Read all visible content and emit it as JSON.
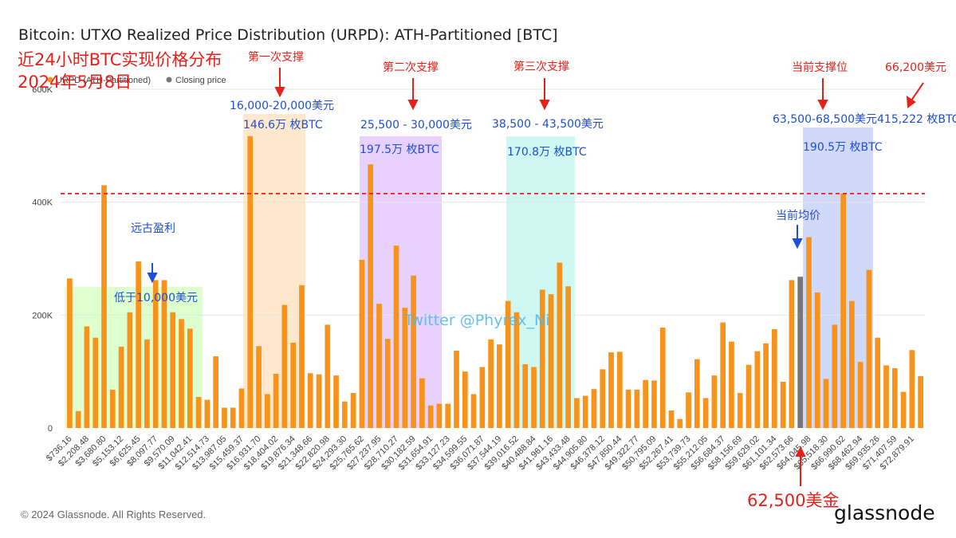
{
  "chart_data": {
    "type": "bar",
    "title": "Bitcoin: UTXO Realized Price Distribution (URPD): ATH-Partitioned [BTC]",
    "legend": [
      {
        "label": "URPD (ATH-Partitioned)",
        "color": "#f7931a"
      },
      {
        "label": "Closing price",
        "color": "#777777"
      }
    ],
    "ylim": [
      0,
      600000
    ],
    "yticks": [
      {
        "value": 0,
        "label": "0"
      },
      {
        "value": 200000,
        "label": "200K"
      },
      {
        "value": 400000,
        "label": "400K"
      },
      {
        "value": 600000,
        "label": "600K"
      }
    ],
    "xtick_labels": [
      "$736.16",
      "$2,208.48",
      "$3,680.80",
      "$5,153.12",
      "$6,625.45",
      "$8,097.77",
      "$9,570.09",
      "$11,042.41",
      "$12,514.73",
      "$13,987.05",
      "$15,459.37",
      "$16,931.70",
      "$18,404.02",
      "$19,876.34",
      "$21,348.66",
      "$22,820.98",
      "$24,293.30",
      "$25,765.62",
      "$27,237.95",
      "$28,710.27",
      "$30,182.59",
      "$31,654.91",
      "$33,127.23",
      "$34,599.55",
      "$36,071.87",
      "$37,544.19",
      "$39,016.52",
      "$40,488.84",
      "$41,961.16",
      "$43,433.48",
      "$44,905.80",
      "$46,378.12",
      "$47,850.44",
      "$49,322.77",
      "$50,795.09",
      "$52,267.41",
      "$53,739.73",
      "$55,212.05",
      "$56,684.37",
      "$58,156.69",
      "$59,629.02",
      "$61,101.34",
      "$62,573.66",
      "$64,045.98",
      "$65,518.30",
      "$66,990.62",
      "$68,462.94",
      "$69,935.26",
      "$71,407.59",
      "$72,879.91"
    ],
    "bar_width_usd": 736.16,
    "values": [
      265000,
      30000,
      180000,
      160000,
      430000,
      68000,
      144000,
      205000,
      295000,
      157000,
      262000,
      262000,
      205000,
      193000,
      176000,
      55000,
      50000,
      127000,
      36000,
      36000,
      70000,
      517000,
      145000,
      60000,
      96000,
      218000,
      151000,
      253000,
      97000,
      95000,
      183000,
      93000,
      47000,
      62000,
      298000,
      467000,
      220000,
      158000,
      323000,
      213000,
      270000,
      88000,
      40000,
      43000,
      43000,
      137000,
      100000,
      60000,
      108000,
      157000,
      148000,
      225000,
      205000,
      113000,
      108000,
      245000,
      237000,
      293000,
      251000,
      53000,
      57000,
      69000,
      104000,
      134000,
      135000,
      68000,
      68000,
      85000,
      84000,
      178000,
      31000,
      16000,
      63000,
      122000,
      53000,
      93000,
      187000,
      153000,
      62000,
      112000,
      136000,
      150000,
      175000,
      82000,
      262000,
      268000,
      338000,
      240000,
      87000,
      183000,
      415222,
      225000,
      117000,
      280000,
      160000,
      111000,
      106000,
      64000,
      138000,
      92000
    ],
    "closing_price_index": 85,
    "closing_price_usd": 62500,
    "reference_line_btc": 415222
  },
  "annotations": {
    "headline": "近24小时BTC实现价格分布",
    "date": "2024年5月8日",
    "watermark": "Twitter @Phyrex_Ni",
    "support1": {
      "title": "第一次支撑",
      "range": "16,000-20,000美元",
      "amount": "146.6万 枚BTC"
    },
    "support2": {
      "title": "第二次支撑",
      "range": "25,500 - 30,000美元",
      "amount": "197.5万 枚BTC"
    },
    "support3": {
      "title": "第三次支撑",
      "range": "38,500 - 43,500美元",
      "amount": "170.8万 枚BTC"
    },
    "support4": {
      "title": "当前支撑位",
      "range": "63,500-68,500美元",
      "amount": "190.5万 枚BTC"
    },
    "old_profit": "远古盈利",
    "below_10k": "低于10,000美元",
    "ath_price": "66,200美元",
    "ath_amount": "415,222 枚BTC",
    "avg_price": "当前均价",
    "price_6250": "62,500美金"
  },
  "footer": {
    "copyright": "© 2024 Glassnode. All Rights Reserved.",
    "brand": "glassnode"
  },
  "colors": {
    "bar": "#f7931a",
    "closing": "#777777",
    "grid": "#e6e6e6",
    "red": "#e8201a",
    "blue": "#1d4fd8"
  }
}
